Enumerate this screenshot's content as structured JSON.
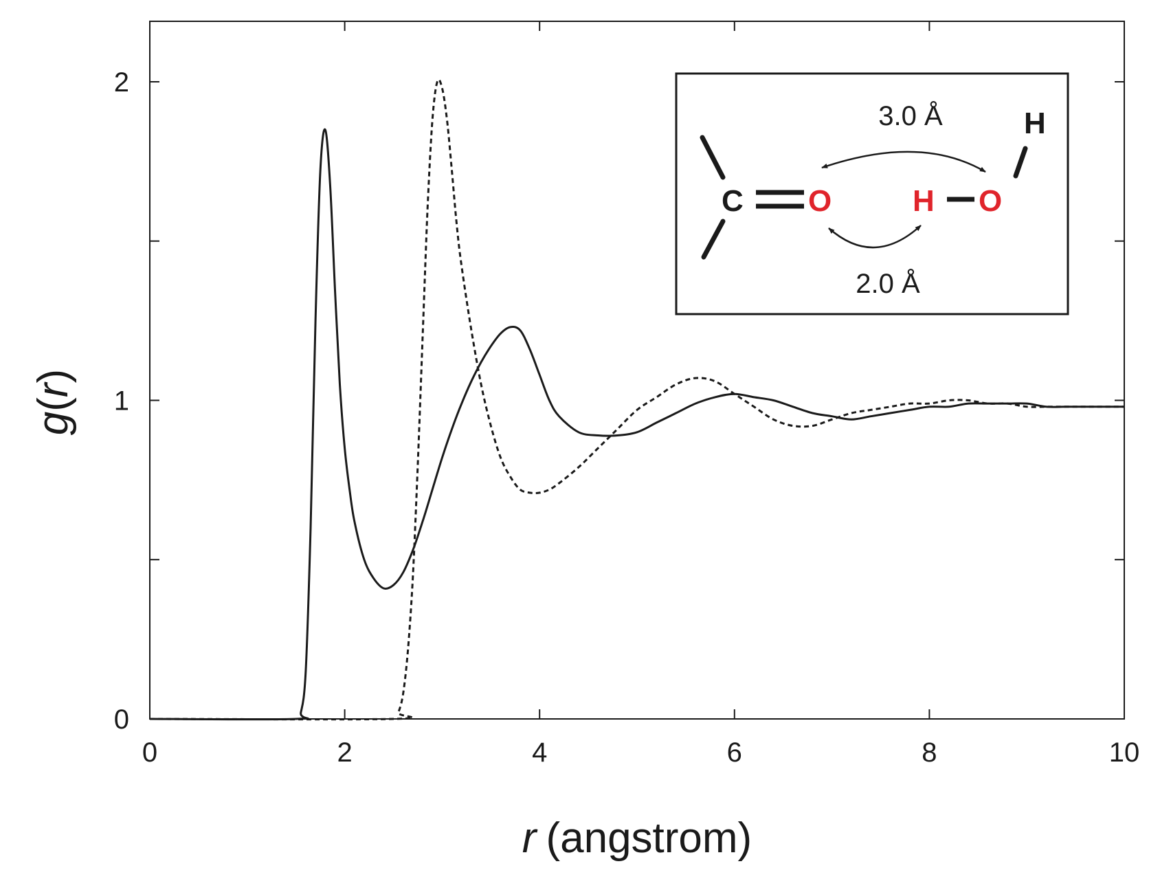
{
  "chart_data": {
    "type": "line",
    "xlabel": {
      "main": "r",
      "unit": "(angstrom)"
    },
    "ylabel": {
      "prefix": "g(",
      "var": "r",
      "suffix": ")"
    },
    "xlim": [
      0,
      10
    ],
    "ylim": [
      0,
      2.2
    ],
    "xticks": [
      0,
      2,
      4,
      6,
      8,
      10
    ],
    "xtick_labels": [
      "0",
      "2",
      "4",
      "6",
      "8",
      "10"
    ],
    "yticks": [
      0,
      0.5,
      1,
      1.5,
      2
    ],
    "ytick_labels": [
      "0",
      "",
      "1",
      "",
      "2"
    ],
    "grid": false,
    "series": [
      {
        "style": "solid",
        "color": "#1a1a1a",
        "x": [
          0,
          1.5,
          1.55,
          1.6,
          1.65,
          1.7,
          1.75,
          1.8,
          1.85,
          1.9,
          1.95,
          2.0,
          2.05,
          2.1,
          2.2,
          2.3,
          2.4,
          2.5,
          2.6,
          2.7,
          2.8,
          2.9,
          3.0,
          3.1,
          3.2,
          3.3,
          3.4,
          3.5,
          3.6,
          3.7,
          3.8,
          3.9,
          4.0,
          4.1,
          4.2,
          4.4,
          4.6,
          4.8,
          5.0,
          5.2,
          5.4,
          5.6,
          5.8,
          6.0,
          6.2,
          6.4,
          6.6,
          6.8,
          7.0,
          7.2,
          7.4,
          7.6,
          7.8,
          8.0,
          8.2,
          8.4,
          8.6,
          8.8,
          9.0,
          9.2,
          9.4,
          9.6,
          9.8,
          10.0
        ],
        "y": [
          0,
          0,
          0.02,
          0.15,
          0.6,
          1.25,
          1.72,
          1.85,
          1.68,
          1.35,
          1.05,
          0.85,
          0.72,
          0.62,
          0.5,
          0.44,
          0.41,
          0.42,
          0.46,
          0.53,
          0.62,
          0.72,
          0.82,
          0.91,
          0.99,
          1.06,
          1.12,
          1.17,
          1.21,
          1.23,
          1.22,
          1.16,
          1.08,
          1.0,
          0.95,
          0.9,
          0.89,
          0.89,
          0.9,
          0.93,
          0.96,
          0.99,
          1.01,
          1.02,
          1.01,
          1.0,
          0.98,
          0.96,
          0.95,
          0.94,
          0.95,
          0.96,
          0.97,
          0.98,
          0.98,
          0.99,
          0.99,
          0.99,
          0.99,
          0.98,
          0.98,
          0.98,
          0.98,
          0.98
        ]
      },
      {
        "style": "dotted",
        "color": "#1a1a1a",
        "x": [
          0,
          2.5,
          2.55,
          2.6,
          2.65,
          2.7,
          2.75,
          2.8,
          2.85,
          2.9,
          2.95,
          3.0,
          3.05,
          3.1,
          3.15,
          3.2,
          3.3,
          3.4,
          3.5,
          3.6,
          3.7,
          3.8,
          3.9,
          4.0,
          4.1,
          4.2,
          4.4,
          4.6,
          4.8,
          5.0,
          5.2,
          5.4,
          5.6,
          5.8,
          6.0,
          6.2,
          6.4,
          6.6,
          6.8,
          7.0,
          7.2,
          7.4,
          7.6,
          7.8,
          8.0,
          8.2,
          8.4,
          8.6,
          8.8,
          9.0,
          9.2,
          9.4,
          9.6,
          9.8,
          10.0
        ],
        "y": [
          0,
          0,
          0.02,
          0.08,
          0.22,
          0.45,
          0.8,
          1.2,
          1.6,
          1.88,
          2.0,
          1.98,
          1.88,
          1.72,
          1.55,
          1.42,
          1.22,
          1.05,
          0.92,
          0.82,
          0.76,
          0.72,
          0.71,
          0.71,
          0.72,
          0.74,
          0.79,
          0.85,
          0.91,
          0.97,
          1.01,
          1.05,
          1.07,
          1.06,
          1.02,
          0.98,
          0.94,
          0.92,
          0.92,
          0.94,
          0.96,
          0.97,
          0.98,
          0.99,
          0.99,
          1.0,
          1.0,
          0.99,
          0.99,
          0.98,
          0.98,
          0.98,
          0.98,
          0.98,
          0.98
        ]
      }
    ],
    "inset": {
      "distance_top": "3.0 Å",
      "distance_bottom": "2.0 Å",
      "atoms": {
        "carbon": "C",
        "oxygen_left": "O",
        "hydrogen_bond": "H",
        "oxygen_right": "O",
        "hydrogen_top": "H"
      },
      "colors": {
        "highlight": "#e0242b",
        "dark": "#1a1a1a"
      }
    }
  }
}
